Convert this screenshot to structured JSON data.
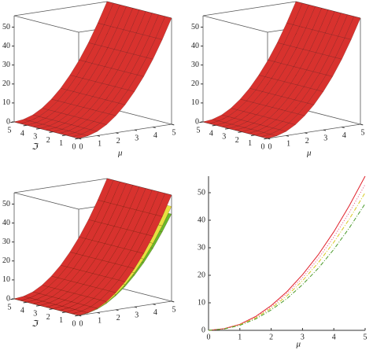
{
  "chart_data": [
    {
      "type": "surface3d",
      "xlabel": "μ",
      "ylabel": "ℑ",
      "x": [
        0,
        0.5,
        1,
        1.5,
        2,
        2.5,
        3,
        3.5,
        4,
        4.5,
        5
      ],
      "xlim": [
        0,
        5
      ],
      "ylim": [
        0,
        5
      ],
      "zlim": [
        0,
        56
      ],
      "xticks": [
        0,
        1,
        2,
        3,
        4,
        5
      ],
      "yticks": [
        0,
        1,
        2,
        3,
        4,
        5
      ],
      "zticks": [
        0,
        10,
        20,
        30,
        40,
        50
      ],
      "series": [
        {
          "color": "#d8322e",
          "values": [
            0,
            0.6,
            2.2,
            5,
            9,
            14,
            20.2,
            27.4,
            35.8,
            45.4,
            56
          ]
        }
      ]
    },
    {
      "type": "surface3d",
      "xlabel": "μ",
      "x": [
        0,
        0.5,
        1,
        1.5,
        2,
        2.5,
        3,
        3.5,
        4,
        4.5,
        5
      ],
      "xlim": [
        0,
        5
      ],
      "ylim": [
        0,
        5
      ],
      "zlim": [
        0,
        56
      ],
      "xticks": [
        0,
        1,
        2,
        3,
        4,
        5
      ],
      "yticks": [
        0,
        1,
        2,
        3,
        4,
        5
      ],
      "zticks": [
        0,
        10,
        20,
        30,
        40,
        50
      ],
      "series": [
        {
          "color": "#d8322e",
          "values": [
            0,
            0.6,
            2.2,
            5,
            9,
            14,
            20.2,
            27.4,
            35.8,
            45.4,
            56
          ]
        }
      ]
    },
    {
      "type": "surface3d",
      "ylabel": "ℑ",
      "x": [
        0,
        0.5,
        1,
        1.5,
        2,
        2.5,
        3,
        3.5,
        4,
        4.5,
        5
      ],
      "xlim": [
        0,
        5
      ],
      "ylim": [
        0,
        5
      ],
      "zlim": [
        0,
        56
      ],
      "xticks": [
        0,
        1,
        2,
        3,
        4,
        5
      ],
      "yticks": [
        0,
        1,
        2,
        3,
        4,
        5
      ],
      "zticks": [
        0,
        10,
        20,
        30,
        40,
        50
      ],
      "series": [
        {
          "color": "#6ab82a",
          "values": [
            0,
            0.5,
            1.8,
            4.1,
            7.4,
            11.5,
            16.6,
            22.5,
            29.4,
            37.3,
            46
          ]
        },
        {
          "color": "#e8e040",
          "values": [
            0,
            0.5,
            2,
            4.5,
            8,
            12.5,
            18,
            24.5,
            32,
            40.5,
            50
          ]
        },
        {
          "color": "#d8322e",
          "values": [
            0,
            0.6,
            2.2,
            5,
            9,
            14,
            20.2,
            27.4,
            35.8,
            45.4,
            56
          ]
        }
      ]
    },
    {
      "type": "line",
      "xlabel": "μ",
      "x": [
        0,
        0.5,
        1,
        1.5,
        2,
        2.5,
        3,
        3.5,
        4,
        4.5,
        5
      ],
      "xlim": [
        0,
        5
      ],
      "ylim": [
        0,
        56
      ],
      "xticks": [
        0,
        1,
        2,
        3,
        4,
        5
      ],
      "yticks": [
        0,
        10,
        20,
        30,
        40,
        50
      ],
      "series": [
        {
          "color": "#e0202a",
          "style": "solid",
          "values": [
            0,
            0.6,
            2.2,
            5,
            9,
            14,
            20.2,
            27.4,
            35.8,
            45.4,
            56
          ]
        },
        {
          "color": "#e8608a",
          "style": "dotted",
          "values": [
            0,
            0.5,
            2.1,
            4.8,
            8.5,
            13.3,
            19.1,
            26,
            33.9,
            42.9,
            53
          ]
        },
        {
          "color": "#d8c820",
          "style": "dashdot",
          "values": [
            0,
            0.5,
            2,
            4.5,
            8,
            12.5,
            18,
            24.5,
            32,
            40.5,
            50
          ]
        },
        {
          "color": "#4a9a2a",
          "style": "dashdot",
          "values": [
            0,
            0.5,
            1.8,
            4.1,
            7.4,
            11.5,
            16.6,
            22.5,
            29.4,
            37.3,
            46
          ]
        }
      ]
    }
  ]
}
